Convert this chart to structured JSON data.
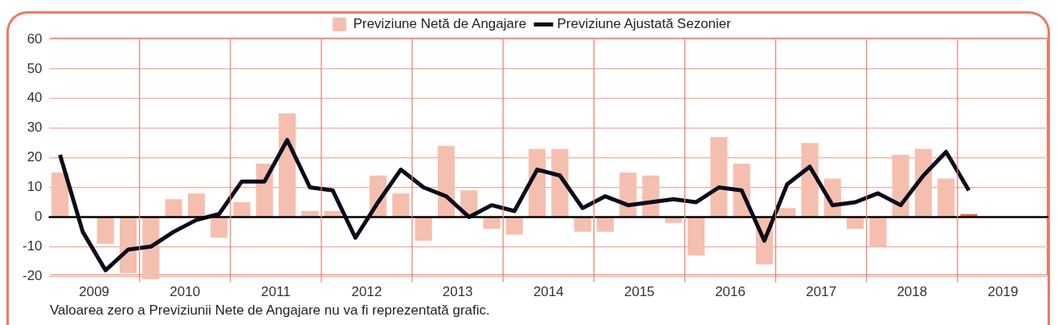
{
  "chart_data": {
    "type": "bar",
    "x": [
      2009.125,
      2009.375,
      2009.625,
      2009.875,
      2010.125,
      2010.375,
      2010.625,
      2010.875,
      2011.125,
      2011.375,
      2011.625,
      2011.875,
      2012.125,
      2012.375,
      2012.625,
      2012.875,
      2013.125,
      2013.375,
      2013.625,
      2013.875,
      2014.125,
      2014.375,
      2014.625,
      2014.875,
      2015.125,
      2015.375,
      2015.625,
      2015.875,
      2016.125,
      2016.375,
      2016.625,
      2016.875,
      2017.125,
      2017.375,
      2017.625,
      2017.875,
      2018.125,
      2018.375,
      2018.625,
      2018.875,
      2019.125
    ],
    "series": [
      {
        "name": "Previziune Netă de Angajare",
        "color": "#f5bfb0",
        "colors": [
          "#f5bfb0",
          "#f5bfb0",
          "#f5bfb0",
          "#f5bfb0",
          "#f5bfb0",
          "#f5bfb0",
          "#f5bfb0",
          "#f5bfb0",
          "#f5bfb0",
          "#f5bfb0",
          "#f5bfb0",
          "#f5bfb0",
          "#f5bfb0",
          "#f5bfb0",
          "#f5bfb0",
          "#f5bfb0",
          "#f5bfb0",
          "#f5bfb0",
          "#f5bfb0",
          "#f5bfb0",
          "#f5bfb0",
          "#f5bfb0",
          "#f5bfb0",
          "#f5bfb0",
          "#f5bfb0",
          "#f5bfb0",
          "#f5bfb0",
          "#f5bfb0",
          "#f5bfb0",
          "#f5bfb0",
          "#f5bfb0",
          "#f5bfb0",
          "#f5bfb0",
          "#f5bfb0",
          "#f5bfb0",
          "#f5bfb0",
          "#f5bfb0",
          "#f5bfb0",
          "#f5bfb0",
          "#f5bfb0",
          "#e8664e"
        ],
        "values": [
          15,
          0,
          -9,
          -19,
          -21,
          6,
          8,
          -7,
          5,
          18,
          35,
          2,
          2,
          0,
          14,
          8,
          -8,
          24,
          9,
          -4,
          -6,
          23,
          23,
          -5,
          -5,
          15,
          14,
          -2,
          -13,
          27,
          18,
          -16,
          3,
          25,
          13,
          -4,
          -10,
          21,
          23,
          13,
          1
        ]
      },
      {
        "name": "Previziune Ajustată Sezonier",
        "type": "line",
        "color": "#0b0b1a",
        "values": [
          21,
          -5,
          -18,
          -11,
          -10,
          -5,
          -1,
          1,
          12,
          12,
          26,
          10,
          9,
          -7,
          5,
          16,
          10,
          7,
          0,
          4,
          2,
          16,
          14,
          3,
          7,
          4,
          5,
          6,
          5,
          10,
          9,
          -8,
          11,
          17,
          4,
          5,
          8,
          4,
          14,
          22,
          9
        ]
      }
    ],
    "xlim": [
      2009,
      2020
    ],
    "xticks": [
      {
        "value": 2009.5,
        "label": "2009"
      },
      {
        "value": 2010.5,
        "label": "2010"
      },
      {
        "value": 2011.5,
        "label": "2011"
      },
      {
        "value": 2012.5,
        "label": "2012"
      },
      {
        "value": 2013.5,
        "label": "2013"
      },
      {
        "value": 2014.5,
        "label": "2014"
      },
      {
        "value": 2015.5,
        "label": "2015"
      },
      {
        "value": 2016.5,
        "label": "2016"
      },
      {
        "value": 2017.5,
        "label": "2017"
      },
      {
        "value": 2018.5,
        "label": "2018"
      },
      {
        "value": 2019.5,
        "label": "2019"
      }
    ],
    "ylim": [
      -22,
      60
    ],
    "yticks": [
      -20,
      -10,
      0,
      10,
      20,
      30,
      40,
      50,
      60
    ],
    "ref_lines": [
      {
        "axis": "y",
        "value": 0,
        "color": "#000000"
      },
      {
        "axis": "x",
        "value": 2010,
        "color": "#ee7c6a"
      },
      {
        "axis": "x",
        "value": 2011,
        "color": "#ee7c6a"
      },
      {
        "axis": "x",
        "value": 2012,
        "color": "#ee7c6a"
      },
      {
        "axis": "x",
        "value": 2013,
        "color": "#ee7c6a"
      },
      {
        "axis": "x",
        "value": 2014,
        "color": "#ee7c6a"
      },
      {
        "axis": "x",
        "value": 2015,
        "color": "#ee7c6a"
      },
      {
        "axis": "x",
        "value": 2016,
        "color": "#ee7c6a"
      },
      {
        "axis": "x",
        "value": 2017,
        "color": "#ee7c6a"
      },
      {
        "axis": "x",
        "value": 2018,
        "color": "#ee7c6a"
      },
      {
        "axis": "x",
        "value": 2019,
        "color": "#ee7c6a"
      }
    ],
    "grid": "y",
    "legend": "top",
    "marker": "none",
    "line_style": "solid",
    "annotations": [
      "Valoarea zero a Previziunii Nete de Angajare nu va fi reprezentată grafic."
    ]
  }
}
